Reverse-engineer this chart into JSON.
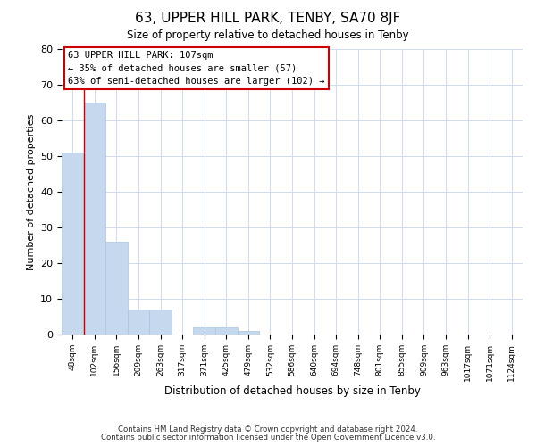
{
  "title": "63, UPPER HILL PARK, TENBY, SA70 8JF",
  "subtitle": "Size of property relative to detached houses in Tenby",
  "xlabel": "Distribution of detached houses by size in Tenby",
  "ylabel": "Number of detached properties",
  "bar_labels": [
    "48sqm",
    "102sqm",
    "156sqm",
    "209sqm",
    "263sqm",
    "317sqm",
    "371sqm",
    "425sqm",
    "479sqm",
    "532sqm",
    "586sqm",
    "640sqm",
    "694sqm",
    "748sqm",
    "801sqm",
    "855sqm",
    "909sqm",
    "963sqm",
    "1017sqm",
    "1071sqm",
    "1124sqm"
  ],
  "bar_values": [
    51,
    65,
    26,
    7,
    7,
    0,
    2,
    2,
    1,
    0,
    0,
    0,
    0,
    0,
    0,
    0,
    0,
    0,
    0,
    0,
    0
  ],
  "bar_color": "#c5d8ed",
  "bar_edge_color": "#a8c4de",
  "ylim": [
    0,
    80
  ],
  "yticks": [
    0,
    10,
    20,
    30,
    40,
    50,
    60,
    70,
    80
  ],
  "property_line_x": 1,
  "annotation_title": "63 UPPER HILL PARK: 107sqm",
  "annotation_line1": "← 35% of detached houses are smaller (57)",
  "annotation_line2": "63% of semi-detached houses are larger (102) →",
  "annotation_box_color": "#ffffff",
  "annotation_border_color": "#cc0000",
  "property_line_color": "#cc0000",
  "footer_line1": "Contains HM Land Registry data © Crown copyright and database right 2024.",
  "footer_line2": "Contains public sector information licensed under the Open Government Licence v3.0.",
  "background_color": "#ffffff",
  "grid_color": "#d0dcec"
}
